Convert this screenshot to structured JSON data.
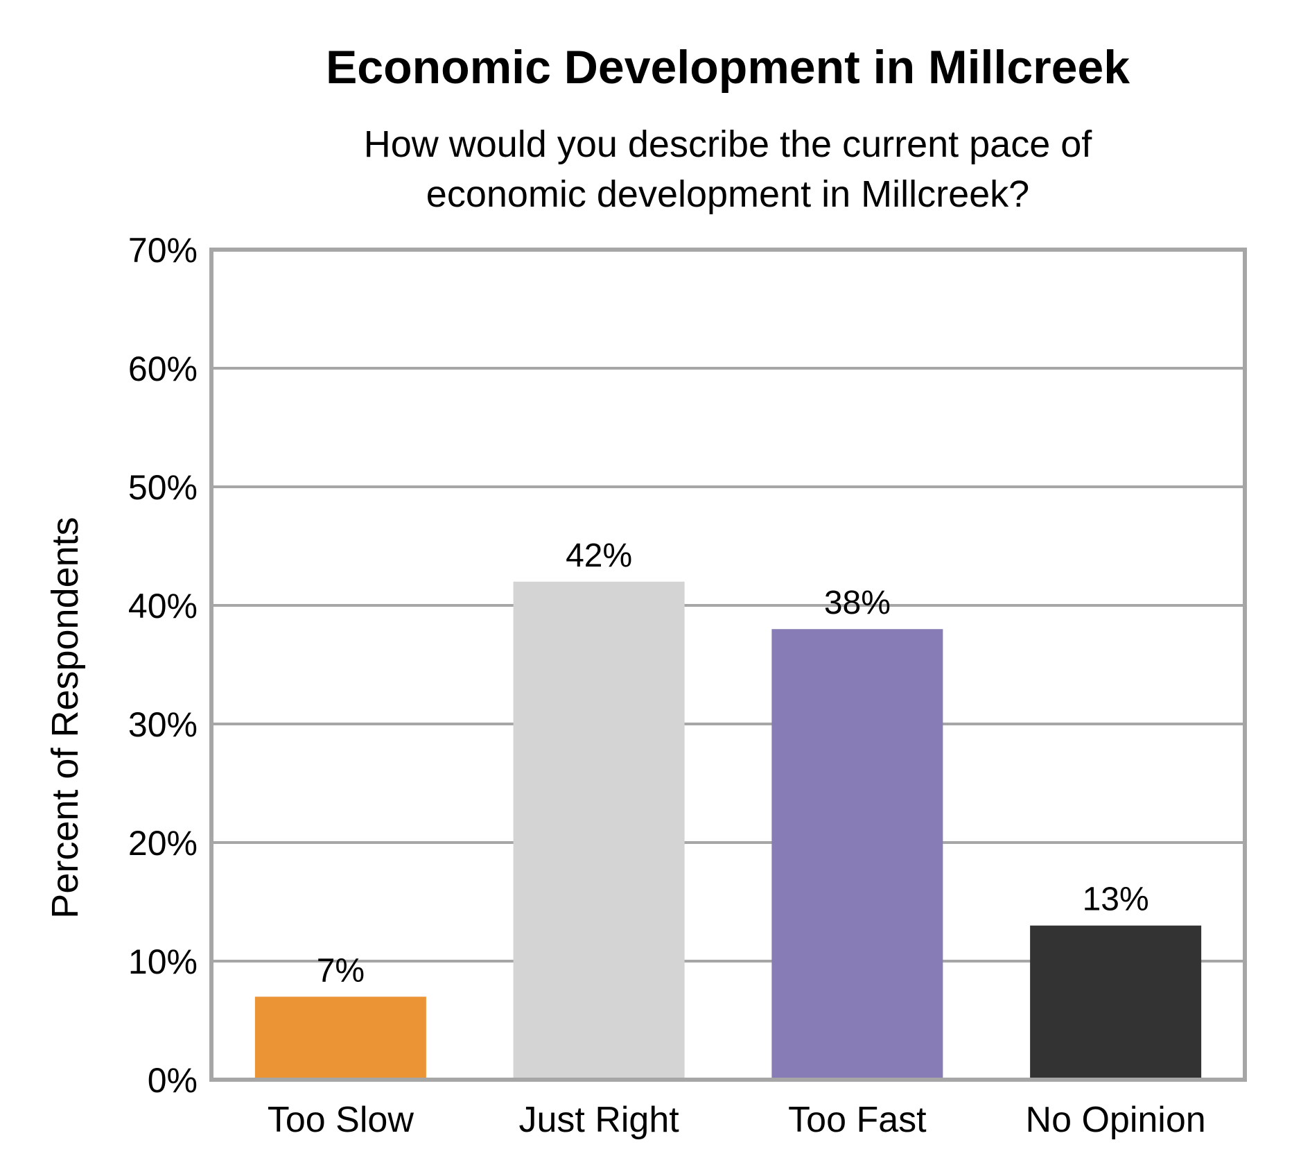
{
  "chart_data": {
    "type": "bar",
    "title": "Economic Development in Millcreek",
    "subtitle_lines": [
      "How would you describe the current pace of",
      "economic development in Millcreek?"
    ],
    "ylabel": "Percent of Respondents",
    "xlabel": "",
    "ylim": [
      0,
      70
    ],
    "y_ticks": [
      0,
      10,
      20,
      30,
      40,
      50,
      60,
      70
    ],
    "y_tick_labels": [
      "0%",
      "10%",
      "20%",
      "30%",
      "40%",
      "50%",
      "60%",
      "70%"
    ],
    "grid": true,
    "legend": "none",
    "categories": [
      "Too Slow",
      "Just Right",
      "Too Fast",
      "No Opinion"
    ],
    "values": [
      7,
      42,
      38,
      13
    ],
    "value_labels": [
      "7%",
      "42%",
      "38%",
      "13%"
    ],
    "bar_colors": [
      "#EB9436",
      "#D4D4D4",
      "#887CB6",
      "#333333"
    ],
    "frame_color": "#A6A6A6",
    "grid_color": "#A6A6A6"
  }
}
